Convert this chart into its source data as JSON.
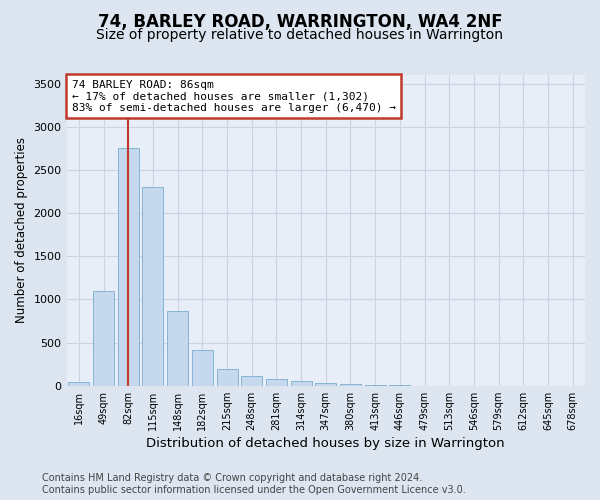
{
  "title": "74, BARLEY ROAD, WARRINGTON, WA4 2NF",
  "subtitle": "Size of property relative to detached houses in Warrington",
  "xlabel": "Distribution of detached houses by size in Warrington",
  "ylabel": "Number of detached properties",
  "categories": [
    "16sqm",
    "49sqm",
    "82sqm",
    "115sqm",
    "148sqm",
    "182sqm",
    "215sqm",
    "248sqm",
    "281sqm",
    "314sqm",
    "347sqm",
    "380sqm",
    "413sqm",
    "446sqm",
    "479sqm",
    "513sqm",
    "546sqm",
    "579sqm",
    "612sqm",
    "645sqm",
    "678sqm"
  ],
  "values": [
    50,
    1100,
    2750,
    2300,
    870,
    420,
    200,
    110,
    75,
    55,
    30,
    20,
    10,
    5,
    2,
    1,
    0,
    0,
    0,
    0,
    0
  ],
  "bar_color": "#c5d8ee",
  "bar_edge_color": "#7aadcf",
  "vline_color": "#c0392b",
  "annotation_text": "74 BARLEY ROAD: 86sqm\n← 17% of detached houses are smaller (1,302)\n83% of semi-detached houses are larger (6,470) →",
  "annotation_box_facecolor": "#ffffff",
  "annotation_box_edgecolor": "#c0392b",
  "ylim_max": 3600,
  "yticks": [
    0,
    500,
    1000,
    1500,
    2000,
    2500,
    3000,
    3500
  ],
  "fig_facecolor": "#dce5f0",
  "ax_facecolor": "#e8eef8",
  "grid_color": "#c8d4e4",
  "footer_line1": "Contains HM Land Registry data © Crown copyright and database right 2024.",
  "footer_line2": "Contains public sector information licensed under the Open Government Licence v3.0.",
  "title_fontsize": 12,
  "subtitle_fontsize": 10,
  "xlabel_fontsize": 9.5,
  "ylabel_fontsize": 8.5,
  "footer_fontsize": 7,
  "tick_fontsize": 8,
  "xtick_fontsize": 7
}
